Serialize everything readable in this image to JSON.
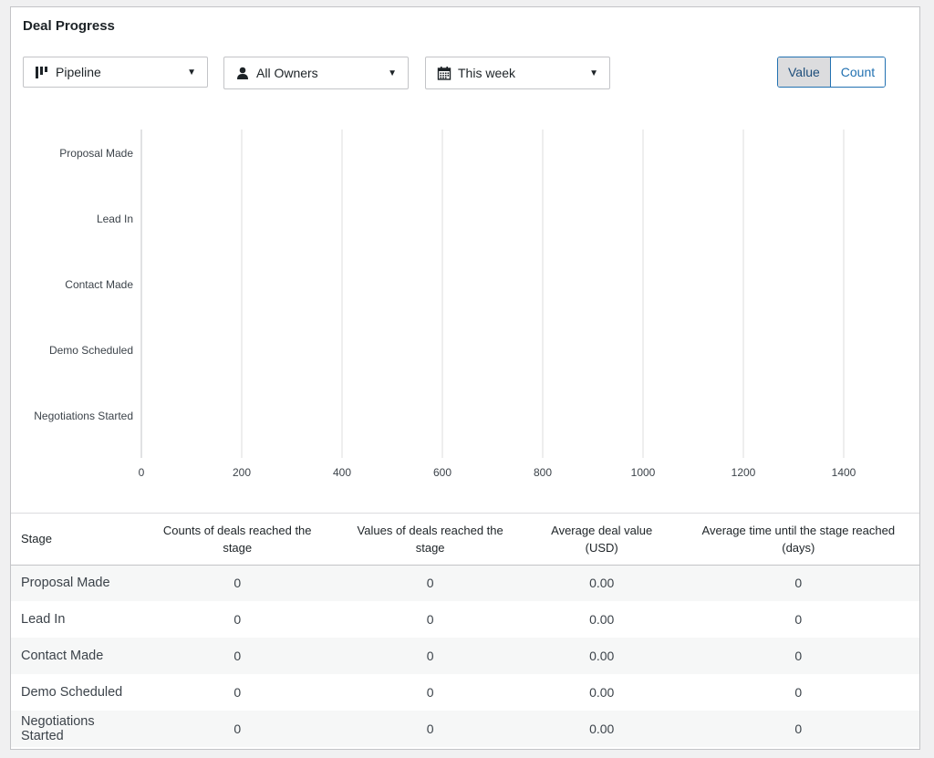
{
  "panel": {
    "title": "Deal Progress"
  },
  "filters": {
    "pipeline": {
      "label": "Pipeline",
      "icon": "pipeline-icon"
    },
    "owners": {
      "label": "All Owners",
      "icon": "user-icon"
    },
    "date": {
      "label": "This week",
      "icon": "calendar-icon"
    }
  },
  "toggle": {
    "value_label": "Value",
    "count_label": "Count",
    "active": "value"
  },
  "chart_data": {
    "type": "bar",
    "orientation": "horizontal",
    "categories": [
      "Proposal Made",
      "Lead In",
      "Contact Made",
      "Demo Scheduled",
      "Negotiations Started"
    ],
    "values": [
      0,
      0,
      0,
      0,
      0
    ],
    "x_ticks": [
      0,
      200,
      400,
      600,
      800,
      1000,
      1200,
      1400
    ],
    "xlim": [
      0,
      1400
    ],
    "grid": true,
    "title": "",
    "xlabel": "",
    "ylabel": ""
  },
  "table": {
    "headers": [
      "Stage",
      "Counts of deals reached the stage",
      "Values of deals reached the stage",
      "Average deal value (USD)",
      "Average time until the stage reached (days)"
    ],
    "rows": [
      [
        "Proposal Made",
        "0",
        "0",
        "0.00",
        "0"
      ],
      [
        "Lead In",
        "0",
        "0",
        "0.00",
        "0"
      ],
      [
        "Contact Made",
        "0",
        "0",
        "0.00",
        "0"
      ],
      [
        "Demo Scheduled",
        "0",
        "0",
        "0.00",
        "0"
      ],
      [
        "Negotiations Started",
        "0",
        "0",
        "0.00",
        "0"
      ]
    ]
  }
}
